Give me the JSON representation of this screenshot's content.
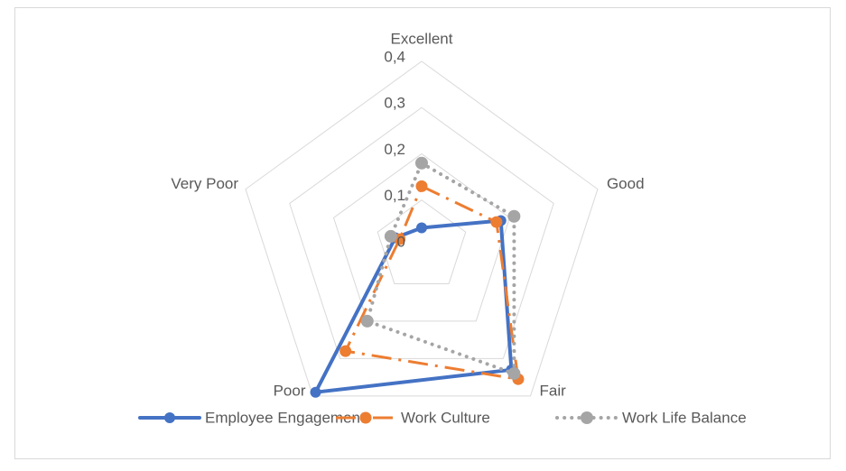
{
  "chart_data": {
    "type": "radar",
    "categories": [
      "Excellent",
      "Good",
      "Fair",
      "Poor",
      "Very Poor"
    ],
    "series": [
      {
        "name": "Employee Engagement",
        "color": "#4472c4",
        "values": [
          0.04,
          0.18,
          0.33,
          0.39,
          0.06
        ]
      },
      {
        "name": "Work Culture",
        "color": "#ed7d31",
        "values": [
          0.13,
          0.17,
          0.355,
          0.28,
          0.05
        ]
      },
      {
        "name": "Work Life Balance",
        "color": "#a5a5a5",
        "values": [
          0.18,
          0.21,
          0.34,
          0.2,
          0.07
        ]
      }
    ],
    "ylim": [
      0,
      0.4
    ],
    "yticks": [
      {
        "value": 0,
        "label": "0"
      },
      {
        "value": 0.1,
        "label": "0,1"
      },
      {
        "value": 0.2,
        "label": "0,2"
      },
      {
        "value": 0.3,
        "label": "0,3"
      },
      {
        "value": 0.4,
        "label": "0,4"
      }
    ],
    "grid": true,
    "legend": "bottom"
  }
}
